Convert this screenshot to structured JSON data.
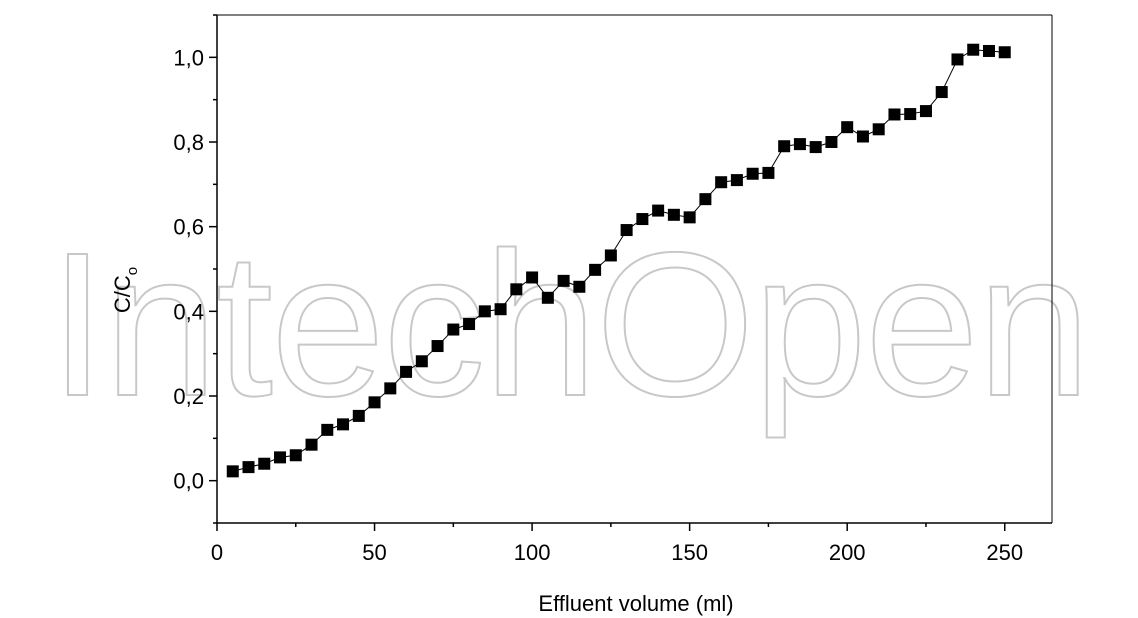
{
  "watermark": "IntechOpen",
  "chart_data": {
    "type": "scatter",
    "xlabel": "Effluent volume (ml)",
    "ylabel_main": "C/C",
    "ylabel_sub": "o",
    "xlim": [
      0,
      265
    ],
    "ylim": [
      -0.1,
      1.1
    ],
    "xticks": [
      0,
      50,
      100,
      150,
      200,
      250
    ],
    "xtick_labels": [
      "0",
      "50",
      "100",
      "150",
      "200",
      "250"
    ],
    "yticks": [
      0.0,
      0.2,
      0.4,
      0.6,
      0.8,
      1.0
    ],
    "ytick_labels": [
      "0,0",
      "0,2",
      "0,4",
      "0,6",
      "0,8",
      "1,0"
    ],
    "marker": "square",
    "connect_points": true,
    "color": "#000000",
    "series": [
      {
        "x": [
          5,
          10,
          15,
          20,
          25,
          30,
          35,
          40,
          45,
          50,
          55,
          60,
          65,
          70,
          75,
          80,
          85,
          90,
          95,
          100,
          105,
          110,
          115,
          120,
          125,
          130,
          135,
          140,
          145,
          150,
          155,
          160,
          165,
          170,
          175,
          180,
          185,
          190,
          195,
          200,
          205,
          210,
          215,
          220,
          225,
          230,
          235,
          240,
          245,
          250
        ],
        "y": [
          0.022,
          0.032,
          0.04,
          0.055,
          0.06,
          0.085,
          0.12,
          0.133,
          0.153,
          0.185,
          0.218,
          0.257,
          0.282,
          0.318,
          0.357,
          0.37,
          0.4,
          0.405,
          0.452,
          0.48,
          0.432,
          0.472,
          0.458,
          0.498,
          0.532,
          0.592,
          0.618,
          0.638,
          0.628,
          0.622,
          0.665,
          0.705,
          0.71,
          0.725,
          0.727,
          0.79,
          0.795,
          0.788,
          0.8,
          0.835,
          0.813,
          0.83,
          0.865,
          0.866,
          0.873,
          0.918,
          0.995,
          1.018,
          1.015,
          1.012
        ]
      }
    ]
  }
}
